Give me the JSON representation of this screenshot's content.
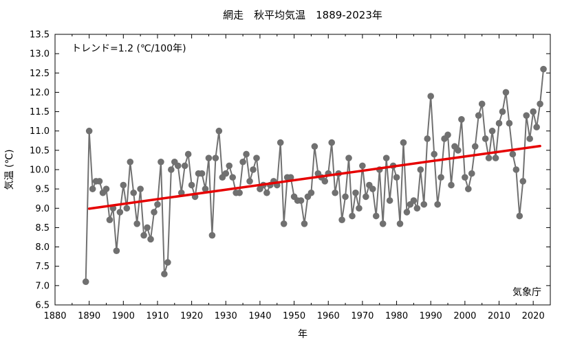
{
  "chart_data": {
    "type": "line",
    "title": "網走　秋平均気温　1889-2023年",
    "xlabel": "年",
    "ylabel": "気温 (℃)",
    "xlim": [
      1880,
      2025
    ],
    "ylim": [
      6.5,
      13.5
    ],
    "xticks": [
      "1880",
      "1890",
      "1900",
      "1910",
      "1920",
      "1930",
      "1940",
      "1950",
      "1960",
      "1970",
      "1980",
      "1990",
      "2000",
      "2010",
      "2020"
    ],
    "yticks": [
      "6.5",
      "7.0",
      "7.5",
      "8.0",
      "8.5",
      "9.0",
      "9.5",
      "10.0",
      "10.5",
      "11.0",
      "11.5",
      "12.0",
      "12.5",
      "13.0",
      "13.5"
    ],
    "grid": false,
    "trend_label": "トレンド=1.2 (℃/100年)",
    "source": "気象庁",
    "colors": {
      "series": "#707070",
      "trend": "#e60000"
    },
    "series": [
      {
        "x": [
          1889,
          1890,
          1891,
          1892,
          1893,
          1894,
          1895,
          1896,
          1897,
          1898,
          1899,
          1900,
          1901,
          1902,
          1903,
          1904,
          1905,
          1906,
          1907,
          1908,
          1909,
          1910,
          1911,
          1912,
          1913,
          1914,
          1915,
          1916,
          1917,
          1918,
          1919,
          1920,
          1921,
          1922,
          1923,
          1924,
          1925,
          1926,
          1927,
          1928,
          1929,
          1930,
          1931,
          1932,
          1933,
          1934,
          1935,
          1936,
          1937,
          1938,
          1939,
          1940,
          1941,
          1942,
          1943,
          1944,
          1945,
          1946,
          1947,
          1948,
          1949,
          1950,
          1951,
          1952,
          1953,
          1954,
          1955,
          1956,
          1957,
          1958,
          1959,
          1960,
          1961,
          1962,
          1963,
          1964,
          1965,
          1966,
          1967,
          1968,
          1969,
          1970,
          1971,
          1972,
          1973,
          1974,
          1975,
          1976,
          1977,
          1978,
          1979,
          1980,
          1981,
          1982,
          1983,
          1984,
          1985,
          1986,
          1987,
          1988,
          1989,
          1990,
          1991,
          1992,
          1993,
          1994,
          1995,
          1996,
          1997,
          1998,
          1999,
          2000,
          2001,
          2002,
          2003,
          2004,
          2005,
          2006,
          2007,
          2008,
          2009,
          2010,
          2011,
          2012,
          2013,
          2014,
          2015,
          2016,
          2017,
          2018,
          2019,
          2020,
          2021,
          2022,
          2023
        ],
        "values": [
          7.1,
          11.0,
          9.5,
          9.7,
          9.7,
          9.4,
          9.5,
          8.7,
          9.0,
          7.9,
          8.9,
          9.6,
          9.0,
          10.2,
          9.4,
          8.6,
          9.5,
          8.3,
          8.5,
          8.2,
          8.9,
          9.1,
          10.2,
          7.3,
          7.6,
          10.0,
          10.2,
          10.1,
          9.4,
          10.1,
          10.4,
          9.6,
          9.3,
          9.9,
          9.9,
          9.5,
          10.3,
          8.3,
          10.3,
          11.0,
          9.8,
          9.9,
          10.1,
          9.8,
          9.4,
          9.4,
          10.2,
          10.4,
          9.7,
          10.0,
          10.3,
          9.5,
          9.6,
          9.4,
          9.6,
          9.7,
          9.6,
          10.7,
          8.6,
          9.8,
          9.8,
          9.3,
          9.2,
          9.2,
          8.6,
          9.3,
          9.4,
          10.6,
          9.9,
          9.8,
          9.7,
          9.9,
          10.7,
          9.4,
          9.9,
          8.7,
          9.3,
          10.3,
          8.8,
          9.4,
          9.0,
          10.1,
          9.3,
          9.6,
          9.5,
          8.8,
          10.0,
          8.6,
          10.3,
          9.2,
          10.1,
          9.8,
          8.6,
          10.7,
          8.9,
          9.1,
          9.2,
          9.0,
          10.0,
          9.1,
          10.8,
          11.9,
          10.4,
          9.1,
          9.8,
          10.8,
          10.9,
          9.6,
          10.6,
          10.5,
          11.3,
          9.8,
          9.5,
          9.9,
          10.6,
          11.4,
          11.7,
          10.8,
          10.3,
          11.0,
          10.3,
          11.2,
          11.5,
          12.0,
          11.2,
          10.4,
          10.0,
          8.8,
          9.7,
          11.4,
          10.8,
          11.5,
          11.1,
          11.7,
          12.6
        ]
      }
    ],
    "trend": {
      "x": [
        1890,
        2022
      ],
      "values": [
        8.99,
        10.61
      ]
    }
  }
}
